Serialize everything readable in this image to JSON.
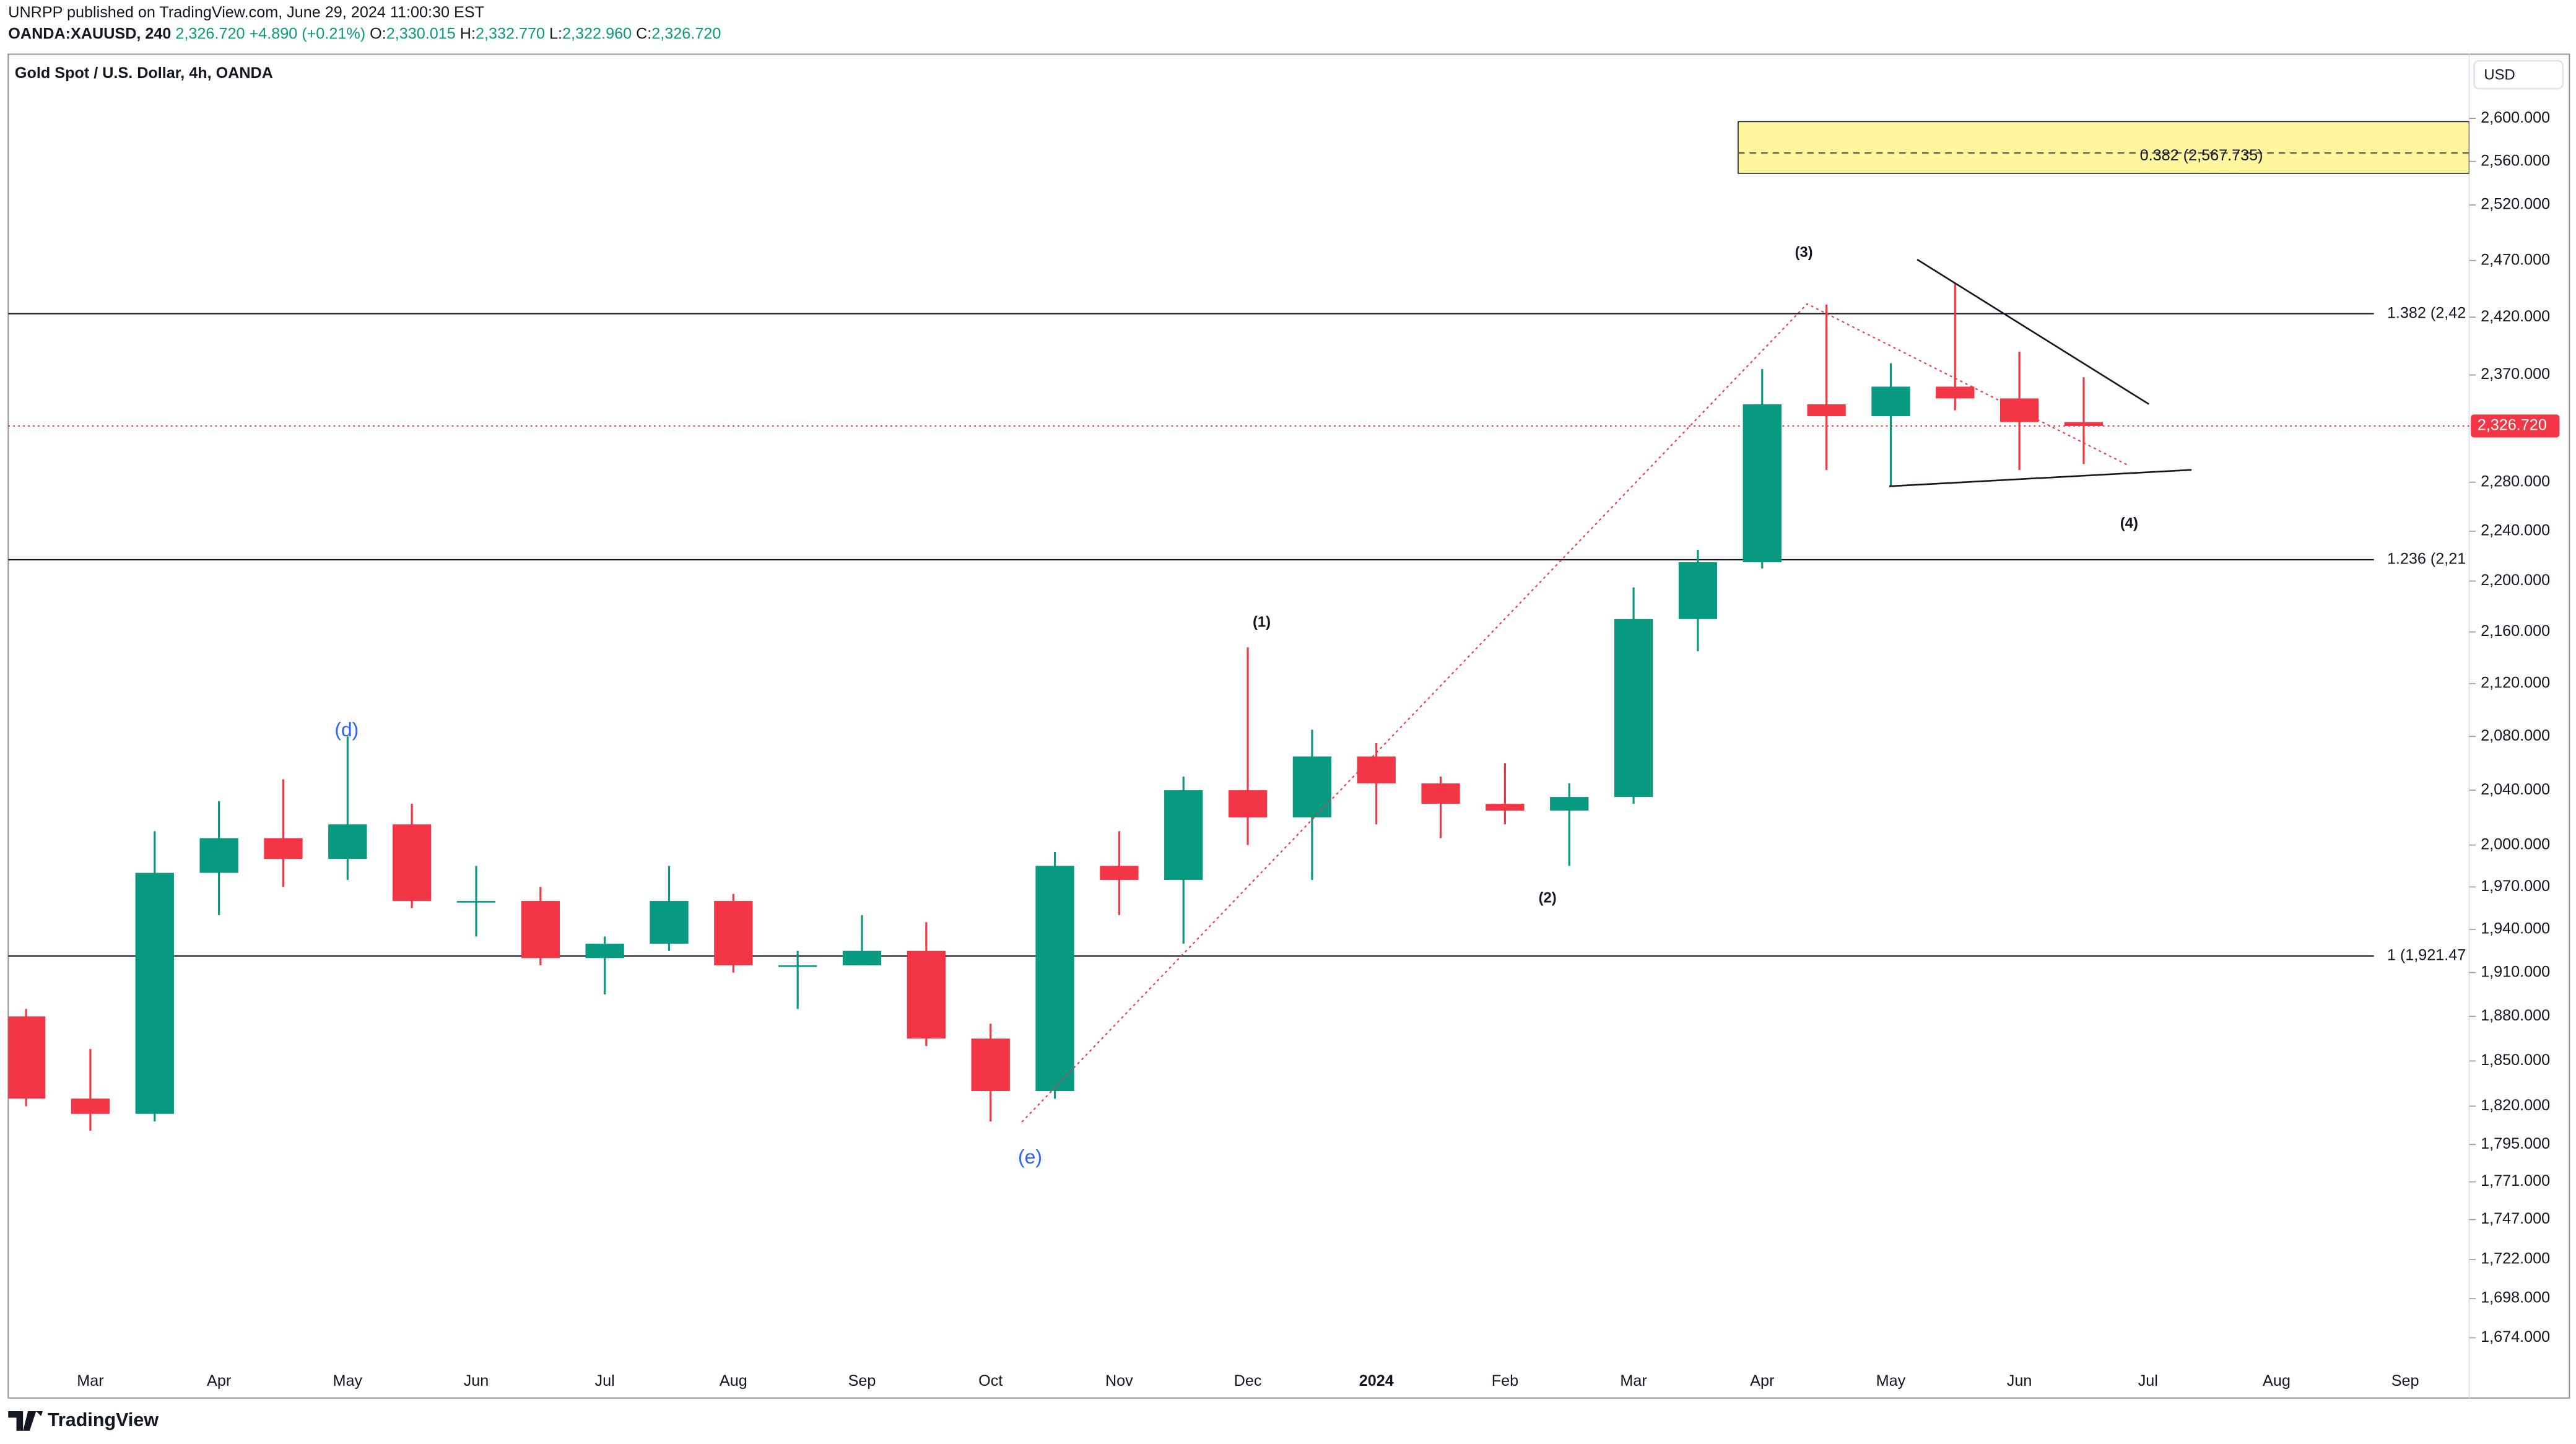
{
  "header": {
    "publisher": "UNRPP published on TradingView.com, June 29, 2024 11:00:30 EST",
    "symbol": "OANDA:XAUUSD, 240",
    "price": "2,326.720",
    "change": "+4.890 (+0.21%)",
    "ohlc": [
      [
        "O:",
        "2,330.015"
      ],
      [
        "H:",
        "2,332.770"
      ],
      [
        "L:",
        "2,322.960"
      ],
      [
        "C:",
        "2,326.720"
      ]
    ],
    "brand": "TradingView"
  },
  "annotations": {
    "d": "(d)",
    "e": "(e)",
    "w1": "(1)",
    "w2": "(2)",
    "w3": "(3)",
    "w4": "(4)"
  },
  "chart_data": {
    "type": "candlestick",
    "title": "Gold Spot / U.S. Dollar, 4h, OANDA",
    "currency": "USD",
    "log": true,
    "up_color": "#089981",
    "down_color": "#f23645",
    "categories": [
      null,
      "Mar",
      null,
      "Apr",
      null,
      "May",
      null,
      "Jun",
      null,
      "Jul",
      null,
      "Aug",
      null,
      "Sep",
      null,
      "Oct",
      null,
      "Nov",
      null,
      "Dec",
      null,
      "2024",
      null,
      "Feb",
      null,
      "Mar",
      null,
      "Apr",
      null,
      "May",
      null,
      "Jun",
      null,
      "Jul",
      null,
      "Aug",
      null,
      "Sep",
      null
    ],
    "open": [
      1880,
      1825,
      1815,
      1980,
      2005,
      1990,
      2015,
      1960,
      1960,
      1920,
      1930,
      1960,
      1915,
      1915,
      1925,
      1865,
      1830,
      1985,
      1975,
      2040,
      2020,
      2065,
      2045,
      2030,
      2025,
      2035,
      2170,
      2215,
      2345,
      2335,
      2360,
      2350,
      2330,
      null,
      null,
      null,
      null,
      null,
      null
    ],
    "high": [
      1885,
      1858,
      2010,
      2032,
      2048,
      2080,
      2030,
      1985,
      1970,
      1935,
      1985,
      1965,
      1925,
      1950,
      1945,
      1875,
      1995,
      2010,
      2050,
      2148,
      2085,
      2075,
      2050,
      2060,
      2045,
      2195,
      2225,
      2375,
      2431,
      2380,
      2450,
      2390,
      2368,
      null,
      null,
      null,
      null,
      null,
      null
    ],
    "low": [
      1820,
      1804,
      1810,
      1950,
      1970,
      1975,
      1955,
      1935,
      1915,
      1895,
      1925,
      1910,
      1885,
      1915,
      1860,
      1810,
      1825,
      1950,
      1930,
      2000,
      1975,
      2015,
      2005,
      2015,
      1985,
      2030,
      2145,
      2210,
      2290,
      2277,
      2340,
      2290,
      2295,
      null,
      null,
      null,
      null,
      null,
      null
    ],
    "close": [
      1825,
      1815,
      1980,
      2005,
      1990,
      2015,
      1960,
      1960,
      1920,
      1930,
      1960,
      1915,
      1915,
      1925,
      1865,
      1830,
      1985,
      1975,
      2040,
      2020,
      2065,
      2045,
      2030,
      2025,
      2035,
      2170,
      2215,
      2345,
      2335,
      2360,
      2350,
      2330,
      2326.72,
      null,
      null,
      null,
      null,
      null,
      null
    ],
    "ylim": [
      1638,
      2661
    ],
    "yticks": [
      {
        "value": 2600,
        "label": "2,600.000"
      },
      {
        "value": 2560,
        "label": "2,560.000"
      },
      {
        "value": 2520,
        "label": "2,520.000"
      },
      {
        "value": 2470,
        "label": "2,470.000"
      },
      {
        "value": 2420,
        "label": "2,420.000"
      },
      {
        "value": 2370,
        "label": "2,370.000"
      },
      {
        "value": 2280,
        "label": "2,280.000"
      },
      {
        "value": 2240,
        "label": "2,240.000"
      },
      {
        "value": 2200,
        "label": "2,200.000"
      },
      {
        "value": 2160,
        "label": "2,160.000"
      },
      {
        "value": 2120,
        "label": "2,120.000"
      },
      {
        "value": 2080,
        "label": "2,080.000"
      },
      {
        "value": 2040,
        "label": "2,040.000"
      },
      {
        "value": 2000,
        "label": "2,000.000"
      },
      {
        "value": 1970,
        "label": "1,970.000"
      },
      {
        "value": 1940,
        "label": "1,940.000"
      },
      {
        "value": 1910,
        "label": "1,910.000"
      },
      {
        "value": 1880,
        "label": "1,880.000"
      },
      {
        "value": 1850,
        "label": "1,850.000"
      },
      {
        "value": 1820,
        "label": "1,820.000"
      },
      {
        "value": 1795,
        "label": "1,795.000"
      },
      {
        "value": 1771,
        "label": "1,771.000"
      },
      {
        "value": 1747,
        "label": "1,747.000"
      },
      {
        "value": 1722,
        "label": "1,722.000"
      },
      {
        "value": 1698,
        "label": "1,698.000"
      },
      {
        "value": 1674,
        "label": "1,674.000"
      }
    ],
    "price_line": {
      "value": 2326.72,
      "label": "2,326.720",
      "color": "#f23645"
    },
    "levels": [
      {
        "value": 2423,
        "label": "1.382 (2,42"
      },
      {
        "value": 2217,
        "label": "1.236 (2,21"
      },
      {
        "value": 1921.47,
        "label": "1 (1,921.47"
      }
    ],
    "target_zone": {
      "range": [
        2549,
        2597
      ],
      "level": 2567.735,
      "label": "0.382 (2,567.735)",
      "color": "#fff59d"
    }
  }
}
